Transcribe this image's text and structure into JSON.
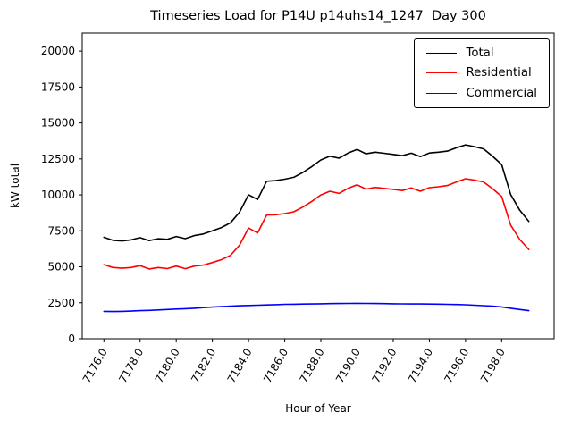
{
  "figure": {
    "title": "Timeseries Load for P14U p14uhs14_1247  Day 300",
    "xlabel": "Hour of Year",
    "ylabel": "kW total"
  },
  "chart_data": {
    "type": "line",
    "title": "Timeseries Load for P14U p14uhs14_1247  Day 300",
    "xlabel": "Hour of Year",
    "ylabel": "kW total",
    "grid": false,
    "legend_position": "upper right",
    "xlim": [
      7174.8,
      7200.9
    ],
    "ylim": [
      0,
      21250
    ],
    "xticks": [
      7176,
      7178,
      7180,
      7182,
      7184,
      7186,
      7188,
      7190,
      7192,
      7194,
      7196,
      7198
    ],
    "xtick_labels": [
      "7176.0",
      "7178.0",
      "7180.0",
      "7182.0",
      "7184.0",
      "7186.0",
      "7188.0",
      "7190.0",
      "7192.0",
      "7194.0",
      "7196.0",
      "7198.0"
    ],
    "yticks": [
      0,
      2500,
      5000,
      7500,
      10000,
      12500,
      15000,
      17500,
      20000
    ],
    "x": [
      7176.0,
      7176.5,
      7177.0,
      7177.5,
      7178.0,
      7178.5,
      7179.0,
      7179.5,
      7180.0,
      7180.5,
      7181.0,
      7181.5,
      7182.0,
      7182.5,
      7183.0,
      7183.5,
      7184.0,
      7184.5,
      7185.0,
      7185.5,
      7186.0,
      7186.5,
      7187.0,
      7187.5,
      7188.0,
      7188.5,
      7189.0,
      7189.5,
      7190.0,
      7190.5,
      7191.0,
      7191.5,
      7192.0,
      7192.5,
      7193.0,
      7193.5,
      7194.0,
      7194.5,
      7195.0,
      7195.5,
      7196.0,
      7196.5,
      7197.0,
      7197.5,
      7198.0,
      7198.5,
      7199.0,
      7199.5
    ],
    "series": [
      {
        "name": "Total",
        "color": "#000000",
        "values": [
          7050,
          6840,
          6800,
          6870,
          7030,
          6820,
          6950,
          6910,
          7110,
          6960,
          7170,
          7280,
          7500,
          7730,
          8060,
          8790,
          10010,
          9680,
          10950,
          10990,
          11090,
          11220,
          11560,
          11970,
          12430,
          12690,
          12550,
          12905,
          13160,
          12855,
          12970,
          12890,
          12810,
          12725,
          12900,
          12665,
          12910,
          12965,
          13045,
          13280,
          13480,
          13350,
          13200,
          12680,
          12110,
          10020,
          8930,
          8150
        ]
      },
      {
        "name": "Residential",
        "color": "#ff0000",
        "values": [
          5150,
          4950,
          4900,
          4950,
          5080,
          4850,
          4950,
          4880,
          5050,
          4870,
          5050,
          5120,
          5300,
          5500,
          5800,
          6500,
          7700,
          7350,
          8600,
          8620,
          8700,
          8820,
          9150,
          9550,
          10000,
          10250,
          10100,
          10450,
          10700,
          10400,
          10520,
          10450,
          10380,
          10300,
          10480,
          10250,
          10500,
          10560,
          10650,
          10900,
          11120,
          11020,
          10900,
          10420,
          9900,
          7900,
          6900,
          6200
        ]
      },
      {
        "name": "Commercial",
        "color": "#0000ff",
        "values": [
          1900,
          1890,
          1900,
          1920,
          1950,
          1970,
          2000,
          2030,
          2060,
          2090,
          2120,
          2160,
          2200,
          2230,
          2260,
          2290,
          2310,
          2330,
          2350,
          2370,
          2390,
          2400,
          2410,
          2420,
          2430,
          2440,
          2450,
          2455,
          2460,
          2455,
          2450,
          2440,
          2430,
          2425,
          2420,
          2415,
          2410,
          2405,
          2395,
          2380,
          2360,
          2330,
          2300,
          2260,
          2210,
          2120,
          2030,
          1950
        ]
      }
    ]
  }
}
